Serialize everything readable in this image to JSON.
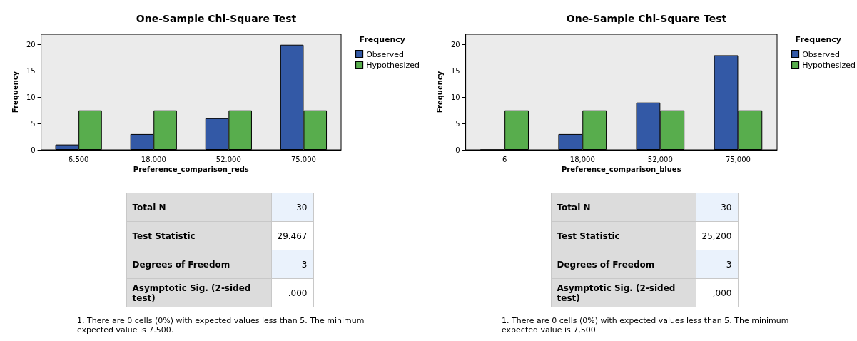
{
  "chart_data": [
    {
      "type": "bar",
      "title": "One-Sample Chi-Square Test",
      "xlabel": "Preference_comparison_reds",
      "ylabel": "Frequency",
      "legend_title": "Frequency",
      "legend": "right",
      "categories": [
        "6.500",
        "18.000",
        "52.000",
        "75.000"
      ],
      "ylim": [
        0,
        22
      ],
      "yticks": [
        0,
        5,
        10,
        15,
        20
      ],
      "series": [
        {
          "name": "Observed",
          "color": "#3359a6",
          "values": [
            1,
            3,
            6,
            20
          ]
        },
        {
          "name": "Hypothesized",
          "color": "#58ad4d",
          "values": [
            7.5,
            7.5,
            7.5,
            7.5
          ]
        }
      ]
    },
    {
      "type": "other",
      "categories": [
        "Total N",
        "Test Statistic",
        "Degrees of Freedom",
        "Asymptotic Sig. (2-sided test)"
      ],
      "value_labels": [
        "30",
        "29.467",
        "3",
        ".000"
      ],
      "annotations": [
        "1.  There are 0 cells (0%) with expected values less than 5.  The minimum expected value is 7.500."
      ]
    },
    {
      "type": "bar",
      "title": "One-Sample Chi-Square Test",
      "xlabel": "Preference_comparison_blues",
      "ylabel": "Frequency",
      "legend_title": "Frequency",
      "legend": "right",
      "categories": [
        "6",
        "18,000",
        "52,000",
        "75,000"
      ],
      "ylim": [
        0,
        22
      ],
      "yticks": [
        0,
        5,
        10,
        15,
        20
      ],
      "series": [
        {
          "name": "Observed",
          "color": "#3359a6",
          "values": [
            0,
            3,
            9,
            18
          ]
        },
        {
          "name": "Hypothesized",
          "color": "#58ad4d",
          "values": [
            7.5,
            7.5,
            7.5,
            7.5
          ]
        }
      ]
    },
    {
      "type": "other",
      "categories": [
        "Total N",
        "Test Statistic",
        "Degrees of Freedom",
        "Asymptotic Sig. (2-sided test)"
      ],
      "value_labels": [
        "30",
        "25,200",
        "3",
        ",000"
      ],
      "annotations": [
        "1.  There are 0 cells (0%) with expected values less than 5.  The minimum expected value is 7,500."
      ]
    }
  ]
}
